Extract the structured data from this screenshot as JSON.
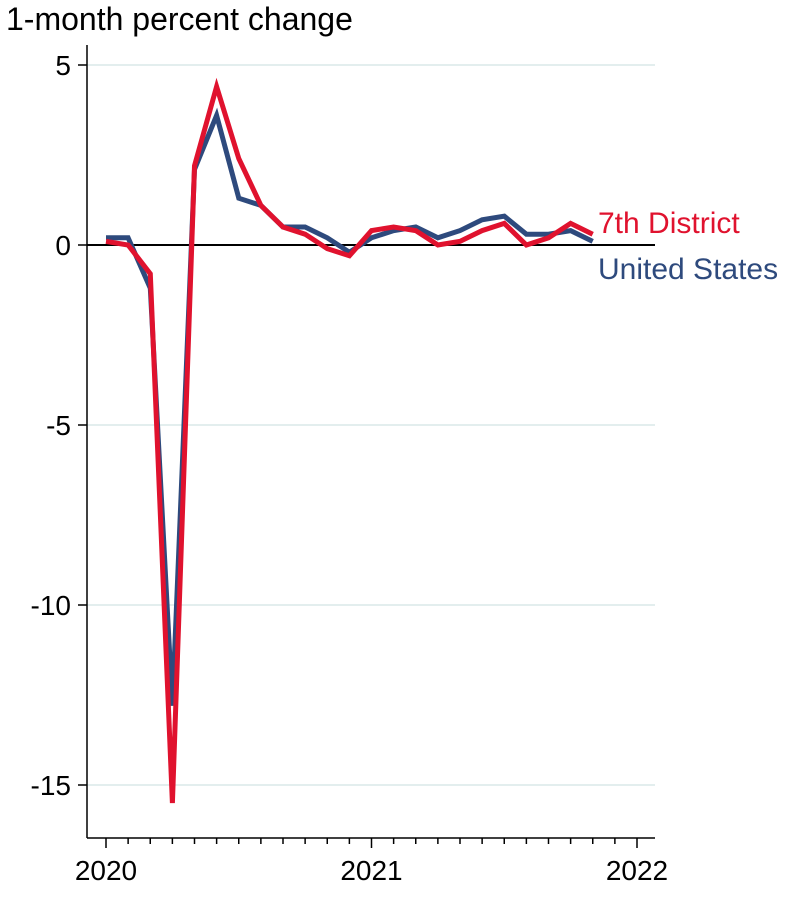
{
  "chart_data": {
    "type": "line",
    "title": "1-month percent change",
    "xlabel": "",
    "ylabel": "",
    "ylim": [
      -16.5,
      5.5
    ],
    "xlim": [
      2020.0,
      2022.0
    ],
    "y_ticks": [
      5,
      0,
      -5,
      -10,
      -15
    ],
    "y_tick_labels": [
      "5",
      "0",
      "-5",
      "-10",
      "-15"
    ],
    "x_ticks": [
      2020,
      2021,
      2022
    ],
    "x_tick_labels": [
      "2020",
      "2021",
      "2022"
    ],
    "grid": "horizontal",
    "zero_line": true,
    "x": [
      "2020-01",
      "2020-02",
      "2020-03",
      "2020-04",
      "2020-05",
      "2020-06",
      "2020-07",
      "2020-08",
      "2020-09",
      "2020-10",
      "2020-11",
      "2020-12",
      "2021-01",
      "2021-02",
      "2021-03",
      "2021-04",
      "2021-05",
      "2021-06",
      "2021-07",
      "2021-08",
      "2021-09",
      "2021-10",
      "2021-11"
    ],
    "series": [
      {
        "name": "United States",
        "color": "#2e4a7d",
        "values": [
          0.2,
          0.2,
          -1.2,
          -12.8,
          2.1,
          3.6,
          1.3,
          1.1,
          0.5,
          0.5,
          0.2,
          -0.2,
          0.2,
          0.4,
          0.5,
          0.2,
          0.4,
          0.7,
          0.8,
          0.3,
          0.3,
          0.4,
          0.1
        ]
      },
      {
        "name": "7th District",
        "color": "#e0122e",
        "values": [
          0.1,
          0.0,
          -0.8,
          -15.5,
          2.2,
          4.4,
          2.4,
          1.1,
          0.5,
          0.3,
          -0.1,
          -0.3,
          0.4,
          0.5,
          0.4,
          0.0,
          0.1,
          0.4,
          0.6,
          0.0,
          0.2,
          0.6,
          0.3
        ]
      }
    ]
  }
}
